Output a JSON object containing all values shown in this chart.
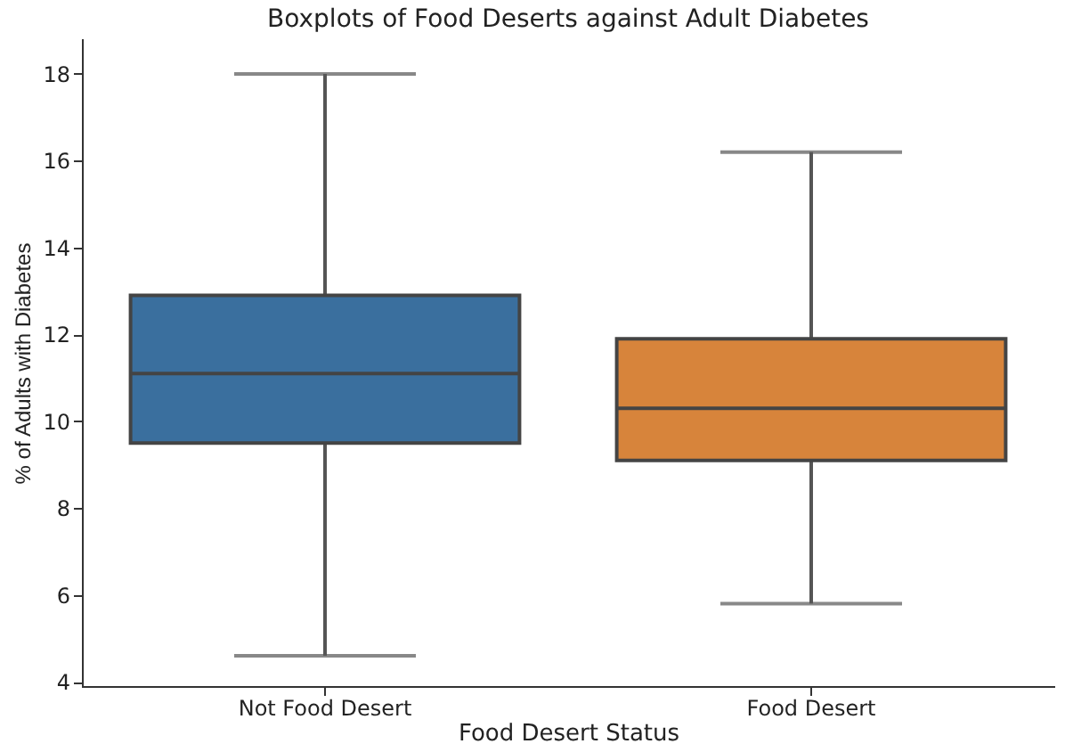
{
  "chart_data": {
    "type": "box",
    "title": "Boxplots of Food Deserts against Adult Diabetes",
    "xlabel": "Food Desert Status",
    "ylabel": "% of Adults with Diabetes",
    "categories": [
      "Not Food Desert",
      "Food Desert"
    ],
    "colors": [
      "#3a6f9e",
      "#d7843b"
    ],
    "boxes": [
      {
        "low": 4.6,
        "q1": 9.5,
        "median": 11.1,
        "q3": 12.9,
        "high": 18.0
      },
      {
        "low": 5.8,
        "q1": 9.1,
        "median": 10.3,
        "q3": 11.9,
        "high": 16.2
      }
    ],
    "ylim": [
      3.9,
      18.8
    ],
    "yticks": [
      4,
      6,
      8,
      10,
      12,
      14,
      16,
      18
    ],
    "legend": false
  }
}
